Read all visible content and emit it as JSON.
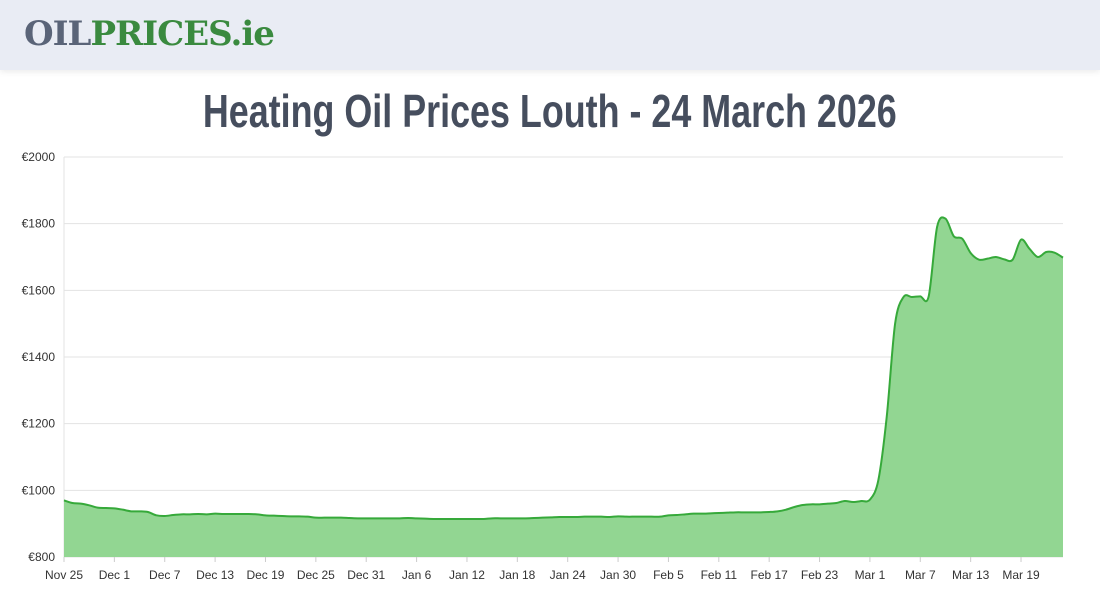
{
  "header": {
    "logo_part1": "OIL",
    "logo_part2": "PRICES.ie"
  },
  "page_title": "Heating Oil Prices Louth - 24 March 2026",
  "chart_data": {
    "type": "area",
    "title": "Heating Oil Prices Louth - 24 March 2026",
    "xlabel": "",
    "ylabel": "",
    "ylim": [
      800,
      2000
    ],
    "grid": true,
    "line_color": "#36a93a",
    "fill_color": "#92d692",
    "y_ticks": [
      "€800",
      "€1000",
      "€1200",
      "€1400",
      "€1600",
      "€1800",
      "€2000"
    ],
    "y_tick_values": [
      800,
      1000,
      1200,
      1400,
      1600,
      1800,
      2000
    ],
    "x_ticks": [
      "Nov 25",
      "Dec 1",
      "Dec 7",
      "Dec 13",
      "Dec 19",
      "Dec 25",
      "Dec 31",
      "Jan 6",
      "Jan 12",
      "Jan 18",
      "Jan 24",
      "Jan 30",
      "Feb 5",
      "Feb 11",
      "Feb 17",
      "Feb 23",
      "Mar 1",
      "Mar 7",
      "Mar 13",
      "Mar 19"
    ],
    "dates": [
      "Nov 25",
      "Nov 26",
      "Nov 27",
      "Nov 28",
      "Nov 29",
      "Nov 30",
      "Dec 1",
      "Dec 2",
      "Dec 3",
      "Dec 4",
      "Dec 5",
      "Dec 6",
      "Dec 7",
      "Dec 8",
      "Dec 9",
      "Dec 10",
      "Dec 11",
      "Dec 12",
      "Dec 13",
      "Dec 14",
      "Dec 15",
      "Dec 16",
      "Dec 17",
      "Dec 18",
      "Dec 19",
      "Dec 20",
      "Dec 21",
      "Dec 22",
      "Dec 23",
      "Dec 24",
      "Dec 25",
      "Dec 26",
      "Dec 27",
      "Dec 28",
      "Dec 29",
      "Dec 30",
      "Dec 31",
      "Jan 1",
      "Jan 2",
      "Jan 3",
      "Jan 4",
      "Jan 5",
      "Jan 6",
      "Jan 7",
      "Jan 8",
      "Jan 9",
      "Jan 10",
      "Jan 11",
      "Jan 12",
      "Jan 13",
      "Jan 14",
      "Jan 15",
      "Jan 16",
      "Jan 17",
      "Jan 18",
      "Jan 19",
      "Jan 20",
      "Jan 21",
      "Jan 22",
      "Jan 23",
      "Jan 24",
      "Jan 25",
      "Jan 26",
      "Jan 27",
      "Jan 28",
      "Jan 29",
      "Jan 30",
      "Jan 31",
      "Feb 1",
      "Feb 2",
      "Feb 3",
      "Feb 4",
      "Feb 5",
      "Feb 6",
      "Feb 7",
      "Feb 8",
      "Feb 9",
      "Feb 10",
      "Feb 11",
      "Feb 12",
      "Feb 13",
      "Feb 14",
      "Feb 15",
      "Feb 16",
      "Feb 17",
      "Feb 18",
      "Feb 19",
      "Feb 20",
      "Feb 21",
      "Feb 22",
      "Feb 23",
      "Feb 24",
      "Feb 25",
      "Feb 26",
      "Feb 27",
      "Feb 28",
      "Mar 1",
      "Mar 2",
      "Mar 3",
      "Mar 4",
      "Mar 5",
      "Mar 6",
      "Mar 7",
      "Mar 8",
      "Mar 9",
      "Mar 10",
      "Mar 11",
      "Mar 12",
      "Mar 13",
      "Mar 14",
      "Mar 15",
      "Mar 16",
      "Mar 17",
      "Mar 18",
      "Mar 19",
      "Mar 20",
      "Mar 21",
      "Mar 22",
      "Mar 23",
      "Mar 24"
    ],
    "values": [
      970,
      962,
      960,
      955,
      948,
      947,
      946,
      942,
      937,
      937,
      935,
      925,
      923,
      926,
      928,
      928,
      929,
      928,
      930,
      929,
      929,
      929,
      929,
      928,
      925,
      924,
      923,
      922,
      922,
      921,
      918,
      918,
      918,
      918,
      917,
      916,
      916,
      916,
      916,
      916,
      916,
      917,
      916,
      915,
      914,
      914,
      914,
      914,
      914,
      914,
      914,
      916,
      916,
      916,
      916,
      916,
      917,
      918,
      919,
      920,
      920,
      920,
      921,
      921,
      921,
      920,
      922,
      921,
      921,
      921,
      921,
      921,
      925,
      926,
      928,
      930,
      930,
      931,
      932,
      933,
      934,
      934,
      934,
      934,
      935,
      937,
      942,
      950,
      956,
      958,
      958,
      960,
      962,
      968,
      965,
      968,
      972,
      1030,
      1220,
      1500,
      1580,
      1580,
      1582,
      1582,
      1790,
      1815,
      1762,
      1755,
      1712,
      1692,
      1695,
      1700,
      1693,
      1692,
      1752,
      1725,
      1700,
      1715,
      1713,
      1698
    ]
  }
}
